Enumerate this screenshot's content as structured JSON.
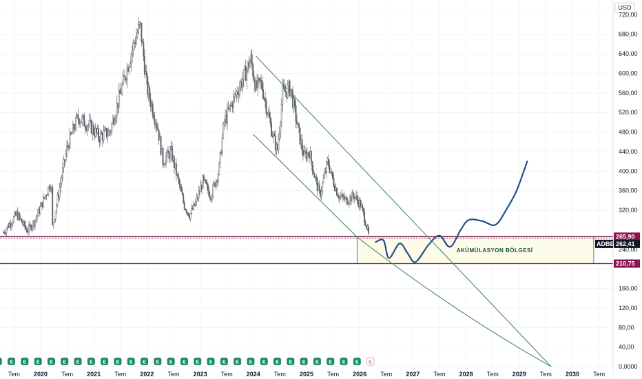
{
  "currency": "USD",
  "chart_data": {
    "type": "candlestick",
    "ticker": "ADBE",
    "currency": "USD",
    "y_ticks": [
      0,
      40,
      80,
      120,
      160,
      200,
      240,
      280,
      320,
      360,
      400,
      440,
      480,
      520,
      560,
      600,
      640,
      680,
      720
    ],
    "y_tick_labels": [
      "0,0000",
      "40,00",
      "80,00",
      "120,00",
      "160,00",
      "",
      "240,00",
      "",
      "320,00",
      "360,00",
      "400,00",
      "440,00",
      "480,00",
      "520,00",
      "560,00",
      "600,00",
      "640,00",
      "680,00",
      "720,00"
    ],
    "ylim": [
      0,
      740
    ],
    "x_ticks": [
      {
        "t": 2019.5,
        "label": "Tem"
      },
      {
        "t": 2020.0,
        "label": "2020"
      },
      {
        "t": 2020.5,
        "label": "Tem"
      },
      {
        "t": 2021.0,
        "label": "2021"
      },
      {
        "t": 2021.5,
        "label": "Tem"
      },
      {
        "t": 2022.0,
        "label": "2022"
      },
      {
        "t": 2022.5,
        "label": "Tem"
      },
      {
        "t": 2023.0,
        "label": "2023"
      },
      {
        "t": 2023.5,
        "label": "Tem"
      },
      {
        "t": 2024.0,
        "label": "2024"
      },
      {
        "t": 2024.5,
        "label": "Tem"
      },
      {
        "t": 2025.0,
        "label": "2025"
      },
      {
        "t": 2025.5,
        "label": "Tem"
      },
      {
        "t": 2026.0,
        "label": "2026"
      },
      {
        "t": 2026.5,
        "label": "Tem"
      },
      {
        "t": 2027.0,
        "label": "2027"
      },
      {
        "t": 2027.5,
        "label": "Tem"
      },
      {
        "t": 2028.0,
        "label": "2028"
      },
      {
        "t": 2028.5,
        "label": "Tem"
      },
      {
        "t": 2029.0,
        "label": "2029"
      },
      {
        "t": 2029.5,
        "label": "Tem"
      },
      {
        "t": 2030.0,
        "label": "2030"
      },
      {
        "t": 2030.5,
        "label": "Tem"
      }
    ],
    "price_path": [
      [
        2019.3,
        275
      ],
      [
        2019.55,
        312
      ],
      [
        2019.75,
        278
      ],
      [
        2019.9,
        300
      ],
      [
        2020.2,
        380
      ],
      [
        2020.22,
        285
      ],
      [
        2020.5,
        450
      ],
      [
        2020.7,
        510
      ],
      [
        2020.95,
        490
      ],
      [
        2021.1,
        470
      ],
      [
        2021.3,
        480
      ],
      [
        2021.55,
        580
      ],
      [
        2021.75,
        660
      ],
      [
        2021.87,
        699
      ],
      [
        2022.0,
        570
      ],
      [
        2022.2,
        490
      ],
      [
        2022.3,
        420
      ],
      [
        2022.45,
        440
      ],
      [
        2022.7,
        330
      ],
      [
        2022.8,
        310
      ],
      [
        2022.9,
        330
      ],
      [
        2023.05,
        380
      ],
      [
        2023.2,
        350
      ],
      [
        2023.35,
        400
      ],
      [
        2023.45,
        500
      ],
      [
        2023.6,
        540
      ],
      [
        2023.85,
        600
      ],
      [
        2023.95,
        630
      ],
      [
        2024.05,
        570
      ],
      [
        2024.15,
        580
      ],
      [
        2024.35,
        480
      ],
      [
        2024.45,
        440
      ],
      [
        2024.55,
        560
      ],
      [
        2024.7,
        570
      ],
      [
        2024.85,
        480
      ],
      [
        2024.95,
        430
      ],
      [
        2025.05,
        440
      ],
      [
        2025.15,
        390
      ],
      [
        2025.25,
        350
      ],
      [
        2025.4,
        420
      ],
      [
        2025.5,
        380
      ],
      [
        2025.6,
        350
      ],
      [
        2025.75,
        340
      ],
      [
        2025.9,
        350
      ],
      [
        2026.02,
        330
      ],
      [
        2026.1,
        300
      ],
      [
        2026.18,
        262.41
      ]
    ],
    "earnings_markers": {
      "label": "E",
      "future_label": "E",
      "t": [
        2019.2,
        2019.45,
        2019.7,
        2019.95,
        2020.2,
        2020.45,
        2020.7,
        2020.95,
        2021.2,
        2021.45,
        2021.7,
        2021.95,
        2022.2,
        2022.45,
        2022.7,
        2022.95,
        2023.2,
        2023.45,
        2023.7,
        2023.95,
        2024.2,
        2024.45,
        2024.7,
        2024.95,
        2025.2,
        2025.45,
        2025.7,
        2025.95
      ],
      "future_t": 2026.2
    },
    "horizontal_levels": [
      {
        "value": 265.9,
        "label": "265,90",
        "color": "#8a1450"
      },
      {
        "value": 210.75,
        "label": "210,75",
        "color": "#8a1450"
      }
    ],
    "last_price": {
      "ticker": "ADBE",
      "value": 262.41,
      "label": "262,41"
    },
    "zone": {
      "label": "AKÜMÜLASYON BÖLGESİ",
      "t_start": 2025.95,
      "t_end": 2030.4,
      "low": 210.75,
      "high": 265.9
    },
    "channel_lines": [
      {
        "from": [
          2024.05,
          635
        ],
        "to": [
          2029.6,
          0
        ],
        "color": "#4a8a6a"
      },
      {
        "from": [
          2024.0,
          475
        ],
        "to": [
          2025.95,
          265
        ],
        "color": "#4a8a6a"
      }
    ],
    "channel_curve": {
      "from": [
        2025.95,
        265
      ],
      "via": [
        2027.8,
        110
      ],
      "to": [
        2029.6,
        0
      ],
      "color": "#4a8a6a"
    },
    "projection_path": [
      [
        2026.3,
        255
      ],
      [
        2026.45,
        258
      ],
      [
        2026.55,
        222
      ],
      [
        2026.75,
        252
      ],
      [
        2026.9,
        232
      ],
      [
        2027.05,
        214
      ],
      [
        2027.3,
        250
      ],
      [
        2027.5,
        268
      ],
      [
        2027.7,
        245
      ],
      [
        2027.9,
        280
      ],
      [
        2028.05,
        300
      ],
      [
        2028.3,
        298
      ],
      [
        2028.55,
        290
      ],
      [
        2028.75,
        320
      ],
      [
        2028.95,
        360
      ],
      [
        2029.15,
        420
      ]
    ],
    "projection_color": "#1f4e8c"
  }
}
